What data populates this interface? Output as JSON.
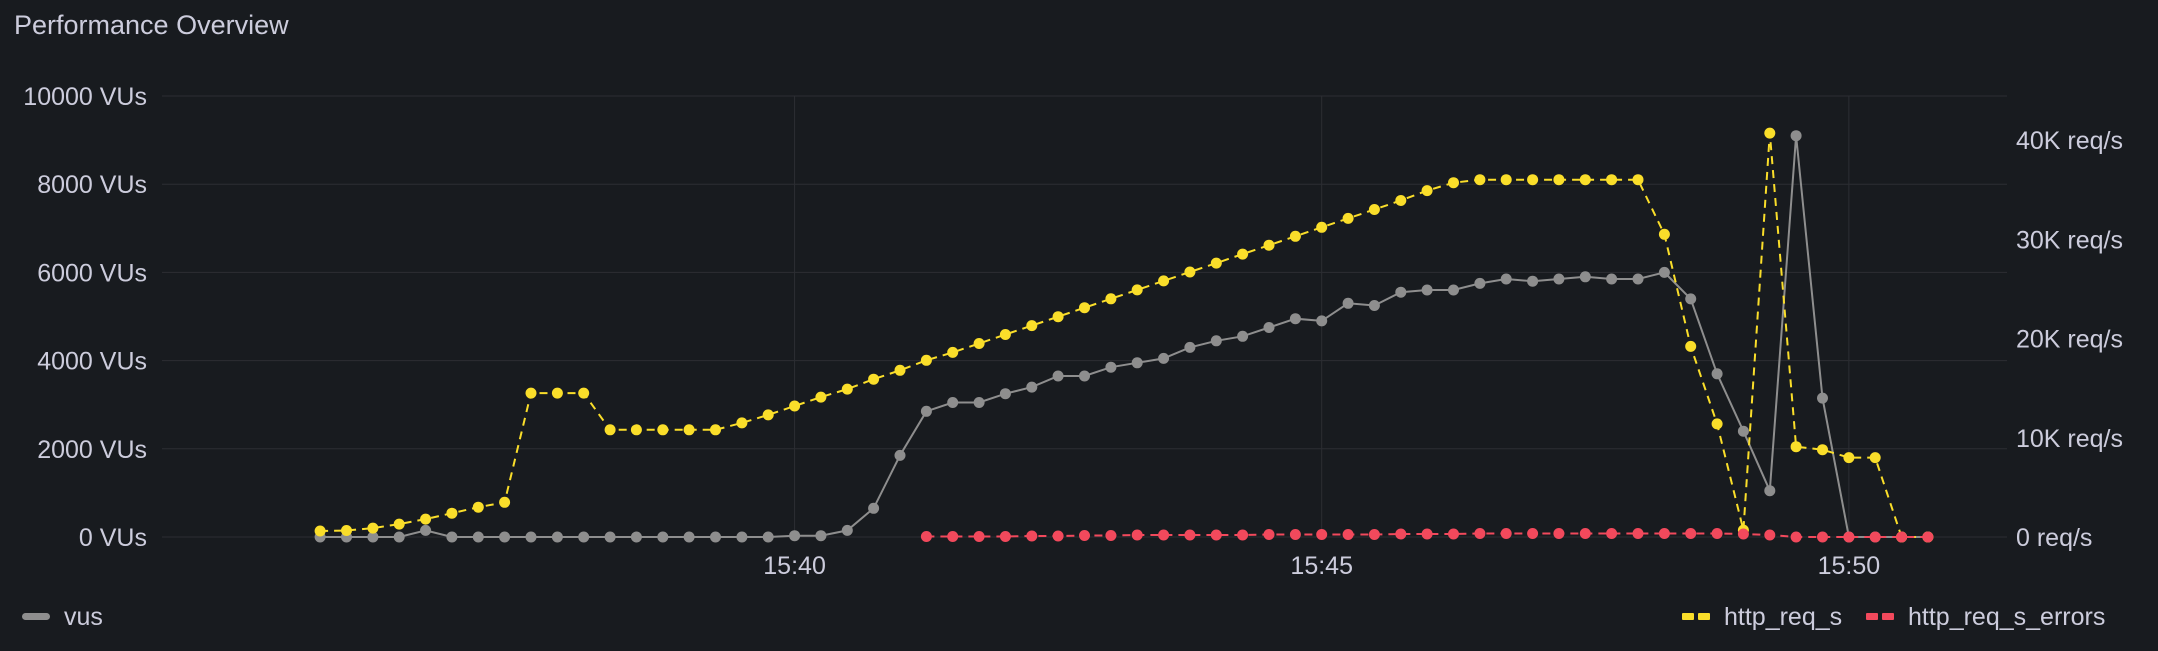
{
  "panel": {
    "title": "Performance Overview"
  },
  "colors": {
    "vus": "#8e8e8e",
    "http_req_s": "#fade2a",
    "http_req_s_errors": "#f2495c",
    "grid": "#2c2e33",
    "text": "#ccccdc"
  },
  "chart_data": {
    "type": "line",
    "title": "Performance Overview",
    "x_unit": "minutes",
    "x_ticks": [
      {
        "value": 40,
        "label": "15:40"
      },
      {
        "value": 45,
        "label": "15:45"
      },
      {
        "value": 50,
        "label": "15:50"
      }
    ],
    "y_left": {
      "min": 0,
      "max": 10000,
      "ticks": [
        {
          "value": 0,
          "label": "0 VUs"
        },
        {
          "value": 2000,
          "label": "2000 VUs"
        },
        {
          "value": 4000,
          "label": "4000 VUs"
        },
        {
          "value": 6000,
          "label": "6000 VUs"
        },
        {
          "value": 8000,
          "label": "8000 VUs"
        },
        {
          "value": 10000,
          "label": "10000 VUs"
        }
      ]
    },
    "y_right": {
      "min": 0,
      "max": 45000,
      "ticks": [
        {
          "value": 0,
          "label": "0 req/s"
        },
        {
          "value": 10000,
          "label": "10K req/s"
        },
        {
          "value": 20000,
          "label": "20K req/s"
        },
        {
          "value": 30000,
          "label": "30K req/s"
        },
        {
          "value": 40000,
          "label": "40K req/s"
        }
      ]
    },
    "grid": true,
    "legend": {
      "left": [
        "vus"
      ],
      "right": [
        "http_req_s",
        "http_req_s_errors"
      ],
      "placement": "bottom"
    },
    "series": [
      {
        "name": "vus",
        "axis": "left",
        "style": "solid",
        "x": [
          35.5,
          35.75,
          36,
          36.25,
          36.5,
          36.75,
          37,
          37.25,
          37.5,
          37.75,
          38,
          38.25,
          38.5,
          38.75,
          39,
          39.25,
          39.5,
          39.75,
          40,
          40.25,
          40.5,
          40.75,
          41,
          41.25,
          41.5,
          41.75,
          42,
          42.25,
          42.5,
          42.75,
          43,
          43.25,
          43.5,
          43.75,
          44,
          44.25,
          44.5,
          44.75,
          45,
          45.25,
          45.5,
          45.75,
          46,
          46.25,
          46.5,
          46.75,
          47,
          47.25,
          47.5,
          47.75,
          48,
          48.25,
          48.5,
          48.75,
          49,
          49.25,
          49.5,
          49.75,
          50,
          50.25,
          50.5,
          50.75
        ],
        "values": [
          0,
          0,
          0,
          0,
          150,
          0,
          0,
          0,
          0,
          0,
          0,
          0,
          0,
          0,
          0,
          0,
          0,
          0,
          30,
          30,
          150,
          650,
          1850,
          2850,
          3050,
          3050,
          3250,
          3400,
          3650,
          3650,
          3850,
          3950,
          4050,
          4300,
          4450,
          4550,
          4750,
          4950,
          4900,
          5300,
          5250,
          5550,
          5600,
          5600,
          5750,
          5850,
          5800,
          5850,
          5900,
          5850,
          5850,
          6000,
          5400,
          3700,
          2400,
          1050,
          9100,
          3150,
          0,
          0,
          0,
          0
        ]
      },
      {
        "name": "http_req_s",
        "axis": "right",
        "style": "dashed",
        "x": [
          35.5,
          35.75,
          36,
          36.25,
          36.5,
          36.75,
          37,
          37.25,
          37.5,
          37.75,
          38,
          38.25,
          38.5,
          38.75,
          39,
          39.25,
          39.5,
          39.75,
          40,
          40.25,
          40.5,
          40.75,
          41,
          41.25,
          41.5,
          41.75,
          42,
          42.25,
          42.5,
          42.75,
          43,
          43.25,
          43.5,
          43.75,
          44,
          44.25,
          44.5,
          44.75,
          45,
          45.25,
          45.5,
          45.75,
          46,
          46.25,
          46.5,
          46.75,
          47,
          47.25,
          47.5,
          47.75,
          48,
          48.25,
          48.5,
          48.75,
          49,
          49.25,
          49.5,
          49.75,
          50,
          50.25,
          50.5,
          50.75
        ],
        "values": [
          600,
          650,
          900,
          1300,
          1800,
          2400,
          3000,
          3500,
          14500,
          14500,
          14500,
          10800,
          10800,
          10800,
          10800,
          10800,
          11500,
          12300,
          13200,
          14100,
          14900,
          15900,
          16800,
          17800,
          18600,
          19500,
          20400,
          21300,
          22200,
          23100,
          24000,
          24900,
          25800,
          26700,
          27600,
          28500,
          29400,
          30300,
          31200,
          32100,
          33000,
          33900,
          34900,
          35700,
          36000,
          36000,
          36000,
          36000,
          36000,
          36000,
          36000,
          30500,
          19200,
          11400,
          700,
          40700,
          9100,
          8800,
          8000,
          8000,
          0,
          0
        ]
      },
      {
        "name": "http_req_s_errors",
        "axis": "right",
        "style": "dashed",
        "x": [
          41.25,
          41.5,
          41.75,
          42,
          42.25,
          42.5,
          42.75,
          43,
          43.25,
          43.5,
          43.75,
          44,
          44.25,
          44.5,
          44.75,
          45,
          45.25,
          45.5,
          45.75,
          46,
          46.25,
          46.5,
          46.75,
          47,
          47.25,
          47.5,
          47.75,
          48,
          48.25,
          48.5,
          48.75,
          49,
          49.25,
          49.5,
          49.75,
          50,
          50.25,
          50.5,
          50.75
        ],
        "values": [
          50,
          50,
          50,
          50,
          100,
          100,
          150,
          150,
          200,
          200,
          200,
          200,
          200,
          250,
          250,
          250,
          250,
          250,
          300,
          300,
          300,
          350,
          350,
          350,
          350,
          350,
          350,
          350,
          350,
          350,
          350,
          300,
          200,
          0,
          0,
          0,
          0,
          0,
          0
        ]
      }
    ]
  }
}
